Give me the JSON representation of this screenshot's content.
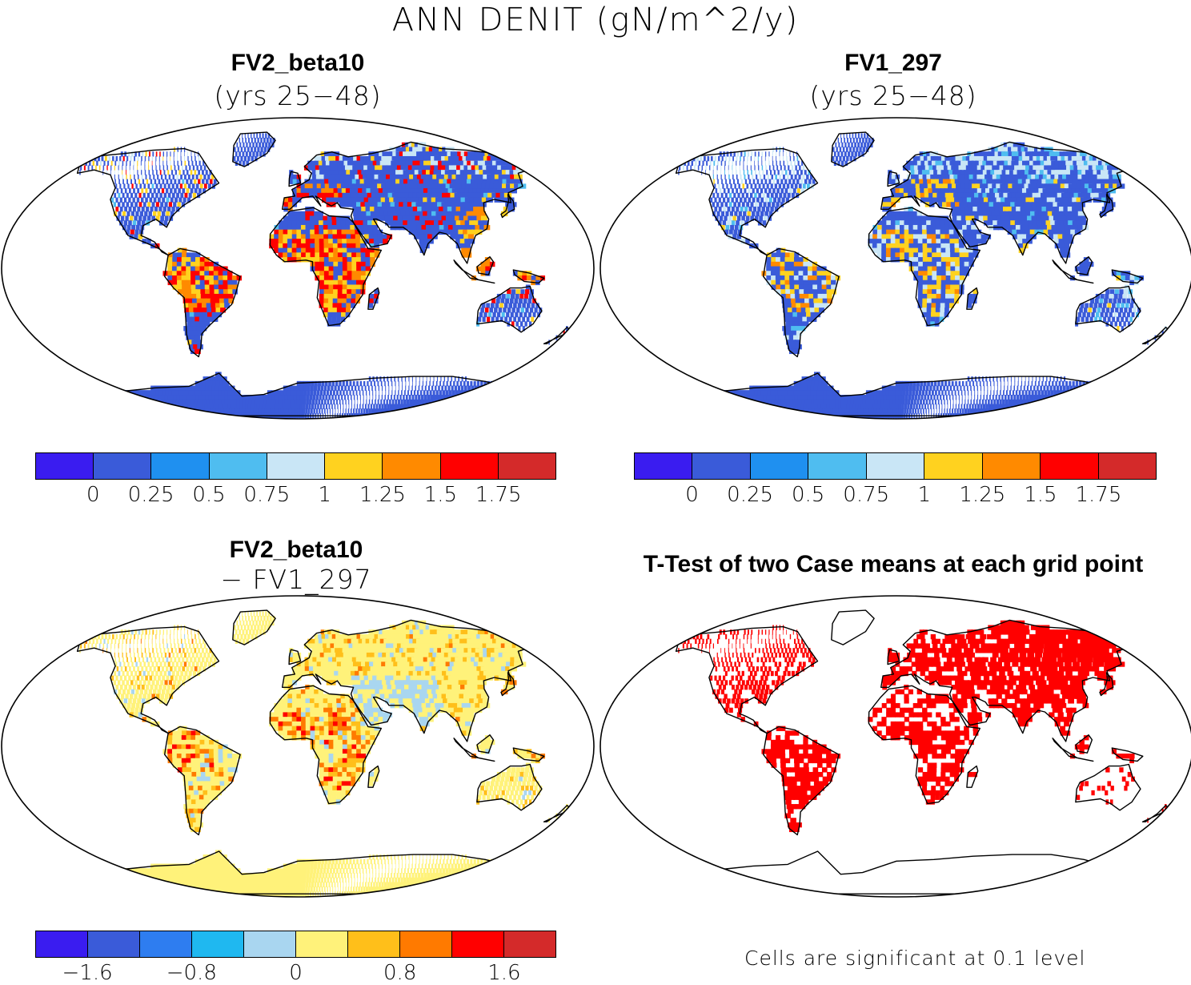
{
  "title": "ANN DENIT (gN/m^2/y)",
  "panels": [
    {
      "id": "p1",
      "title": "FV2_beta10",
      "subtitle": "(yrs 25−48)"
    },
    {
      "id": "p2",
      "title": "FV1_297",
      "subtitle": "(yrs 25−48)"
    },
    {
      "id": "p3",
      "title": "FV2_beta10",
      "subtitle": "− FV1_297"
    },
    {
      "id": "p4",
      "title": "T-Test of two Case means at each grid point",
      "subtitle": ""
    }
  ],
  "colorbars": {
    "absolute": {
      "colors": [
        "#3a1cf0",
        "#3a5bd9",
        "#1f90f0",
        "#4fbdf0",
        "#c9e6f6",
        "#ffd21f",
        "#ff8a00",
        "#ff0000",
        "#d42a2a"
      ],
      "ticks": [
        "0",
        "0.25",
        "0.5",
        "0.75",
        "1",
        "1.25",
        "1.5",
        "1.75"
      ]
    },
    "difference": {
      "colors": [
        "#3a1cf0",
        "#3a5bd9",
        "#2e7df0",
        "#1fb8f0",
        "#a9d6f0",
        "#fff27a",
        "#ffbf1a",
        "#ff7a00",
        "#ff0000",
        "#d42a2a"
      ],
      "ticks": [
        "−1.6",
        "−0.8",
        "0",
        "0.8",
        "1.6"
      ]
    }
  },
  "significance_note": "Cells are significant at 0.1 level",
  "legend_colors": {
    "land_p1": "#3a5bd9",
    "land_p3": "#fff27a",
    "sig": "#ff0000"
  }
}
